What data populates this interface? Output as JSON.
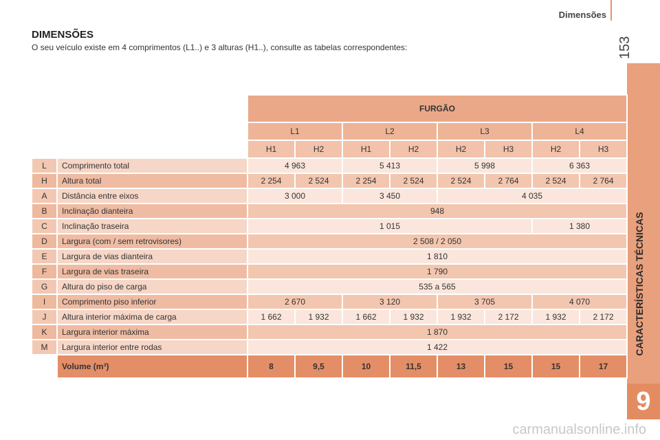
{
  "header": {
    "section": "Dimensões",
    "page_number": "153"
  },
  "title": "DIMENSÕES",
  "intro": "O seu veículo existe em 4 comprimentos (L1..) e 3 alturas (H1..), consulte as tabelas correspondentes:",
  "sidebar": {
    "label": "CARACTERÍSTICAS TÉCNICAS",
    "chapter": "9"
  },
  "watermark": "carmanualsonline.info",
  "table": {
    "group": "FURGÃO",
    "lengths": [
      "L1",
      "L2",
      "L3",
      "L4"
    ],
    "heights": [
      "H1",
      "H2",
      "H1",
      "H2",
      "H2",
      "H3",
      "H2",
      "H3"
    ],
    "rows": [
      {
        "code": "L",
        "label": "Comprimento total",
        "cells": [
          "4 963",
          "5 413",
          "5 998",
          "6 363"
        ]
      },
      {
        "code": "H",
        "label": "Altura total",
        "cells": [
          "2 254",
          "2 524",
          "2 254",
          "2 524",
          "2 524",
          "2 764",
          "2 524",
          "2 764"
        ]
      },
      {
        "code": "A",
        "label": "Distância entre eixos",
        "cells": [
          "3 000",
          "3 450",
          "4 035"
        ]
      },
      {
        "code": "B",
        "label": "Inclinação dianteira",
        "cells": [
          "948"
        ]
      },
      {
        "code": "C",
        "label": "Inclinação traseira",
        "cells": [
          "1 015",
          "1 380"
        ]
      },
      {
        "code": "D",
        "label": "Largura (com / sem retrovisores)",
        "cells": [
          "2 508 / 2 050"
        ]
      },
      {
        "code": "E",
        "label": "Largura de vias dianteira",
        "cells": [
          "1 810"
        ]
      },
      {
        "code": "F",
        "label": "Largura de vias traseira",
        "cells": [
          "1 790"
        ]
      },
      {
        "code": "G",
        "label": "Altura do piso de carga",
        "cells": [
          "535 a 565"
        ]
      },
      {
        "code": "I",
        "label": "Comprimento piso inferior",
        "cells": [
          "2 670",
          "3 120",
          "3 705",
          "4 070"
        ]
      },
      {
        "code": "J",
        "label": "Altura interior máxima de carga",
        "cells": [
          "1 662",
          "1 932",
          "1 662",
          "1 932",
          "1 932",
          "2 172",
          "1 932",
          "2 172"
        ]
      },
      {
        "code": "K",
        "label": "Largura interior máxima",
        "cells": [
          "1 870"
        ]
      },
      {
        "code": "M",
        "label": "Largura interior entre rodas",
        "cells": [
          "1 422"
        ]
      }
    ],
    "volume": {
      "label": "Volume (m³)",
      "cells": [
        "8",
        "9,5",
        "10",
        "11,5",
        "13",
        "15",
        "15",
        "17"
      ]
    }
  }
}
